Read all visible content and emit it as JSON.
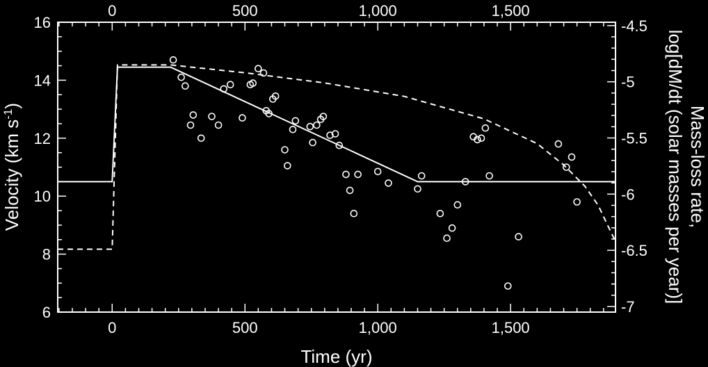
{
  "chart_data": {
    "type": "scatter",
    "title": "",
    "xlabel": "Time (yr)",
    "ylabel_left": "Velocity (km s",
    "ylabel_left_sup": "-1",
    "ylabel_left_end": ")",
    "ylabel_right_line1": "Mass-loss rate,",
    "ylabel_right_line2": "log[dM/dt (solar masses per year)]",
    "xlim": [
      -205,
      1895
    ],
    "ylim_left": [
      6,
      16
    ],
    "ylim_right": [
      -7.05,
      -4.47
    ],
    "x_ticks": [
      0,
      500,
      1000,
      1500
    ],
    "x_tick_labels": [
      "0",
      "500",
      "1,000",
      "1,500"
    ],
    "y_left_ticks": [
      6,
      8,
      10,
      12,
      14,
      16
    ],
    "y_left_tick_labels": [
      "6",
      "8",
      "10",
      "12",
      "14",
      "16"
    ],
    "y_right_ticks": [
      -7,
      -6.5,
      -6,
      -5.5,
      -5,
      -4.5
    ],
    "y_right_tick_labels": [
      "-7",
      "-6.5",
      "-6",
      "-5.5",
      "-5",
      "-4.5"
    ],
    "grid": false,
    "legend": "none",
    "colors": {
      "background": "#000000",
      "foreground": "#ffffff"
    },
    "series": [
      {
        "style": "solid",
        "axis": "left",
        "x": [
          -205,
          0,
          20,
          220,
          1150,
          1895
        ],
        "y": [
          10.5,
          10.5,
          14.45,
          14.45,
          10.5,
          10.5
        ]
      },
      {
        "style": "dashed",
        "axis": "right",
        "x": [
          -205,
          0,
          20,
          220,
          500,
          800,
          1100,
          1400,
          1600,
          1700,
          1780,
          1830,
          1870,
          1895
        ],
        "y": [
          -6.49,
          -6.49,
          -4.85,
          -4.85,
          -4.92,
          -5.01,
          -5.13,
          -5.33,
          -5.55,
          -5.74,
          -5.93,
          -6.1,
          -6.3,
          -6.42
        ]
      },
      {
        "style": "markers",
        "axis": "left",
        "points": [
          [
            230,
            14.7
          ],
          [
            260,
            14.1
          ],
          [
            275,
            13.8
          ],
          [
            295,
            12.45
          ],
          [
            305,
            12.8
          ],
          [
            335,
            12.0
          ],
          [
            375,
            12.75
          ],
          [
            400,
            12.45
          ],
          [
            420,
            13.7
          ],
          [
            445,
            13.85
          ],
          [
            490,
            12.7
          ],
          [
            520,
            13.85
          ],
          [
            530,
            13.9
          ],
          [
            550,
            14.4
          ],
          [
            570,
            14.25
          ],
          [
            580,
            12.95
          ],
          [
            590,
            12.85
          ],
          [
            605,
            13.35
          ],
          [
            615,
            13.45
          ],
          [
            650,
            11.6
          ],
          [
            660,
            11.05
          ],
          [
            680,
            12.3
          ],
          [
            690,
            12.6
          ],
          [
            745,
            12.4
          ],
          [
            755,
            11.85
          ],
          [
            770,
            12.45
          ],
          [
            785,
            12.65
          ],
          [
            795,
            12.75
          ],
          [
            820,
            12.1
          ],
          [
            840,
            12.15
          ],
          [
            855,
            11.75
          ],
          [
            880,
            10.75
          ],
          [
            895,
            10.2
          ],
          [
            910,
            9.4
          ],
          [
            925,
            10.75
          ],
          [
            1000,
            10.85
          ],
          [
            1040,
            10.45
          ],
          [
            1150,
            10.25
          ],
          [
            1165,
            10.7
          ],
          [
            1235,
            9.4
          ],
          [
            1260,
            8.55
          ],
          [
            1280,
            8.9
          ],
          [
            1300,
            9.7
          ],
          [
            1330,
            10.5
          ],
          [
            1360,
            12.05
          ],
          [
            1375,
            11.95
          ],
          [
            1390,
            12.0
          ],
          [
            1405,
            12.35
          ],
          [
            1420,
            10.7
          ],
          [
            1490,
            6.9
          ],
          [
            1530,
            8.6
          ],
          [
            1680,
            11.8
          ],
          [
            1710,
            11.0
          ],
          [
            1730,
            11.35
          ],
          [
            1750,
            9.8
          ]
        ]
      }
    ]
  }
}
